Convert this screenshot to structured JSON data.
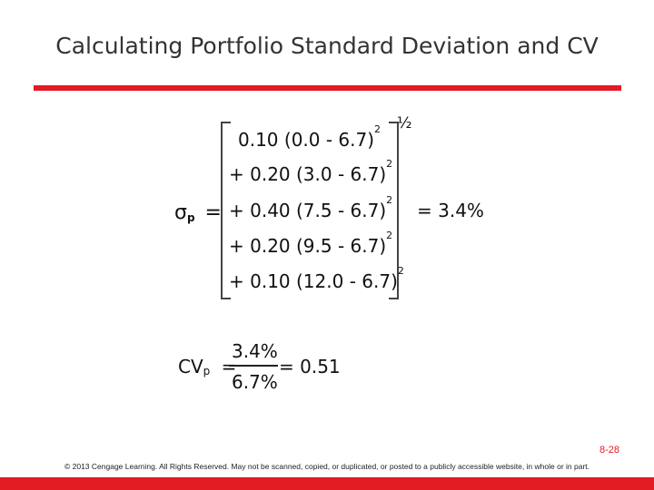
{
  "slide": {
    "title": "Calculating Portfolio Standard Deviation and CV",
    "page_number": "8-28",
    "footer": "© 2013 Cengage Learning. All Rights Reserved. May not be scanned, copied, or duplicated, or posted to a publicly accessible website, in whole or in part."
  },
  "sigma_formula": {
    "lhs_symbol": "σ",
    "lhs_subscript": "p",
    "equals": "=",
    "exponent": "½",
    "terms": [
      "0.10 (0.0 - 6.7)",
      "+ 0.20 (3.0 - 6.7)",
      "+ 0.40 (7.5 - 6.7)",
      "+ 0.20 (9.5 - 6.7)",
      "+ 0.10 (12.0 - 6.7)"
    ],
    "term_exponent": "2",
    "result": "= 3.4%"
  },
  "cv_formula": {
    "lhs": "CV",
    "lhs_subscript": "p",
    "equals": "=",
    "numerator": "3.4%",
    "denominator": "6.7%",
    "result": "= 0.51"
  }
}
